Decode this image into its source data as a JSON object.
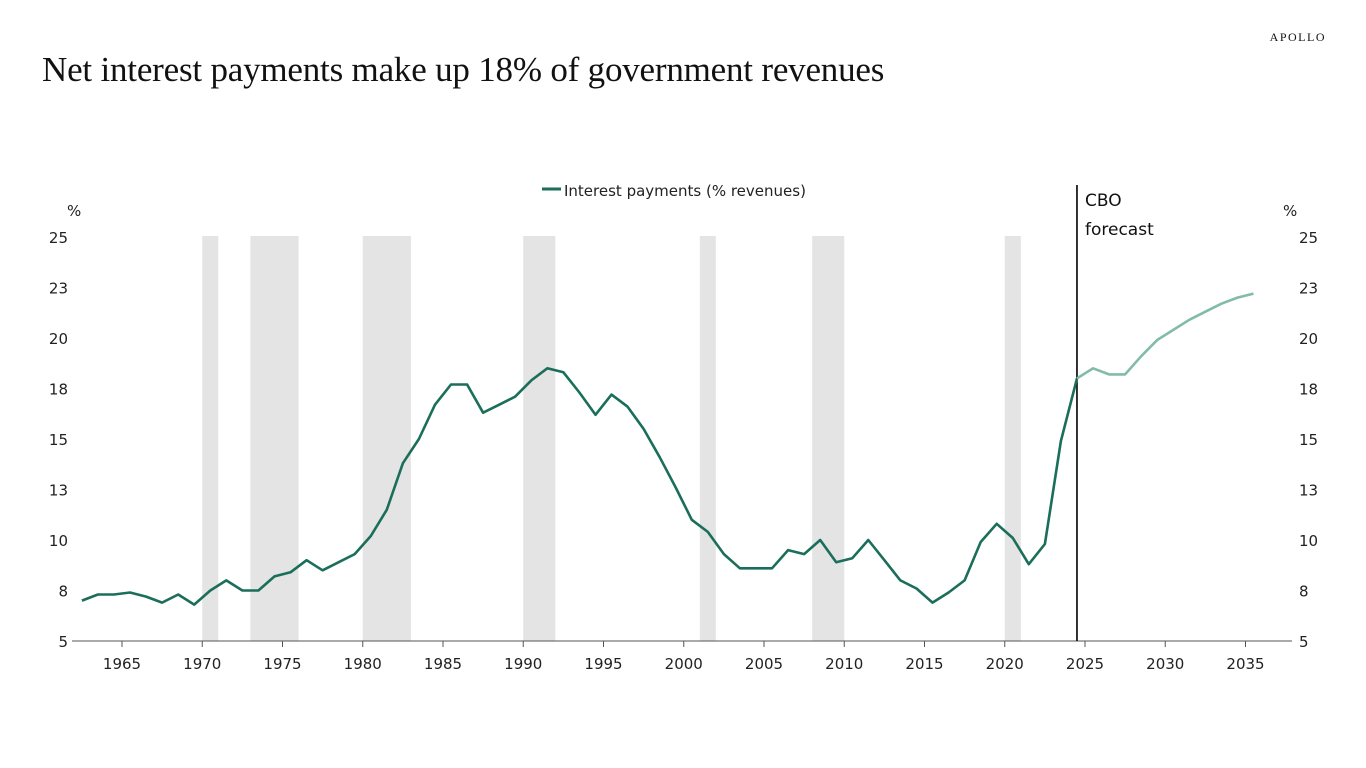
{
  "brand": "APOLLO",
  "title": "Net interest payments make up 18% of government revenues",
  "chart_data": {
    "type": "line",
    "title": "Net interest payments make up 18% of government revenues",
    "xlabel": "",
    "ylabel_left": "%",
    "ylabel_right": "%",
    "ylim": [
      5,
      25
    ],
    "xlim": [
      1961.4,
      2038.4
    ],
    "y_ticks": [
      5,
      7.5,
      10,
      12.5,
      15,
      17.5,
      20,
      22.5,
      25
    ],
    "y_tick_labels": [
      "5",
      "8",
      "10",
      "13",
      "15",
      "18",
      "20",
      "23",
      "25"
    ],
    "x_ticks": [
      1965,
      1970,
      1975,
      1980,
      1985,
      1990,
      1995,
      2000,
      2005,
      2010,
      2015,
      2020,
      2025,
      2030,
      2035
    ],
    "x_tick_labels": [
      "1965",
      "1970",
      "1975",
      "1980",
      "1985",
      "1990",
      "1995",
      "2000",
      "2005",
      "2010",
      "2015",
      "2020",
      "2025",
      "2030",
      "2035"
    ],
    "grid": false,
    "legend": {
      "position": "top-center",
      "entries": [
        "Interest payments (% revenues)"
      ]
    },
    "colors": {
      "actual": "#1a6e5a",
      "forecast": "#82bca8",
      "recession": "#e3e4e3",
      "forecast_line": "#000000"
    },
    "series": [
      {
        "name": "Interest payments (% revenues)",
        "kind": "actual",
        "x": [
          1962,
          1963,
          1964,
          1965,
          1966,
          1967,
          1968,
          1969,
          1970,
          1971,
          1972,
          1973,
          1974,
          1975,
          1976,
          1977,
          1978,
          1979,
          1980,
          1981,
          1982,
          1983,
          1984,
          1985,
          1986,
          1987,
          1988,
          1989,
          1990,
          1991,
          1992,
          1993,
          1994,
          1995,
          1996,
          1997,
          1998,
          1999,
          2000,
          2001,
          2002,
          2003,
          2004,
          2005,
          2006,
          2007,
          2008,
          2009,
          2010,
          2011,
          2012,
          2013,
          2014,
          2015,
          2016,
          2017,
          2018,
          2019,
          2020,
          2021,
          2022,
          2023,
          2024
        ],
        "values": [
          7.0,
          7.3,
          7.3,
          7.4,
          7.2,
          6.9,
          7.3,
          6.8,
          7.5,
          8.0,
          7.5,
          7.5,
          8.2,
          8.4,
          9.0,
          8.5,
          8.9,
          9.3,
          10.2,
          11.5,
          13.8,
          15.0,
          16.7,
          17.7,
          17.7,
          16.3,
          16.7,
          17.1,
          17.9,
          18.5,
          18.3,
          17.3,
          16.2,
          17.2,
          16.6,
          15.5,
          14.1,
          12.6,
          11.0,
          10.4,
          9.3,
          8.6,
          8.6,
          8.6,
          9.5,
          9.3,
          10.0,
          8.9,
          9.1,
          10.0,
          9.0,
          8.0,
          7.6,
          6.9,
          7.4,
          8.0,
          9.9,
          10.8,
          10.1,
          8.8,
          9.8,
          14.9,
          18.0
        ]
      },
      {
        "name": "Interest payments (% revenues) - CBO forecast",
        "kind": "forecast",
        "x": [
          2024,
          2025,
          2026,
          2027,
          2028,
          2029,
          2030,
          2031,
          2032,
          2033,
          2034,
          2035
        ],
        "values": [
          18.0,
          18.5,
          18.2,
          18.2,
          19.1,
          19.9,
          20.4,
          20.9,
          21.3,
          21.7,
          22.0,
          22.2
        ]
      }
    ],
    "recessions": [
      [
        1970,
        1971
      ],
      [
        1973,
        1976
      ],
      [
        1980,
        1983
      ],
      [
        1990,
        1992
      ],
      [
        2001,
        2002
      ],
      [
        2008,
        2010
      ],
      [
        2020,
        2021
      ]
    ],
    "annotations": [
      {
        "text_lines": [
          "CBO",
          "forecast"
        ],
        "x": 2024.5,
        "type": "vertical-line"
      }
    ]
  }
}
